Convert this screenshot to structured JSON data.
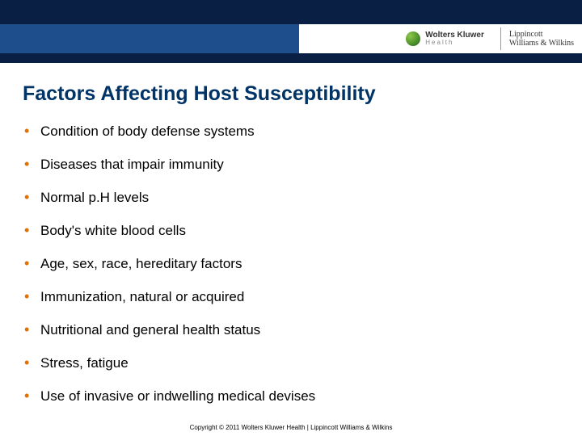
{
  "header": {
    "colors": {
      "top_bar": "#0a1f44",
      "mid_bar": "#1f4e8c",
      "bottom_bar": "#0a1f44",
      "brand_bg": "#ffffff"
    },
    "brand_left": {
      "name": "Wolters Kluwer",
      "sub": "Health",
      "icon_name": "wk-swirl-icon"
    },
    "brand_right": {
      "line1": "Lippincott",
      "line2": "Williams & Wilkins"
    }
  },
  "title": "Factors Affecting Host Susceptibility",
  "title_color": "#003366",
  "bullet_color": "#e07000",
  "text_color": "#000000",
  "bullets": [
    "Condition of body defense systems",
    "Diseases that impair immunity",
    "Normal p.H levels",
    "Body's white blood cells",
    "Age, sex, race, hereditary factors",
    "Immunization, natural or acquired",
    "Nutritional and general health status",
    "Stress, fatigue",
    "Use of invasive or indwelling medical devises"
  ],
  "copyright": "Copyright © 2011 Wolters Kluwer Health | Lippincott Williams & Wilkins"
}
